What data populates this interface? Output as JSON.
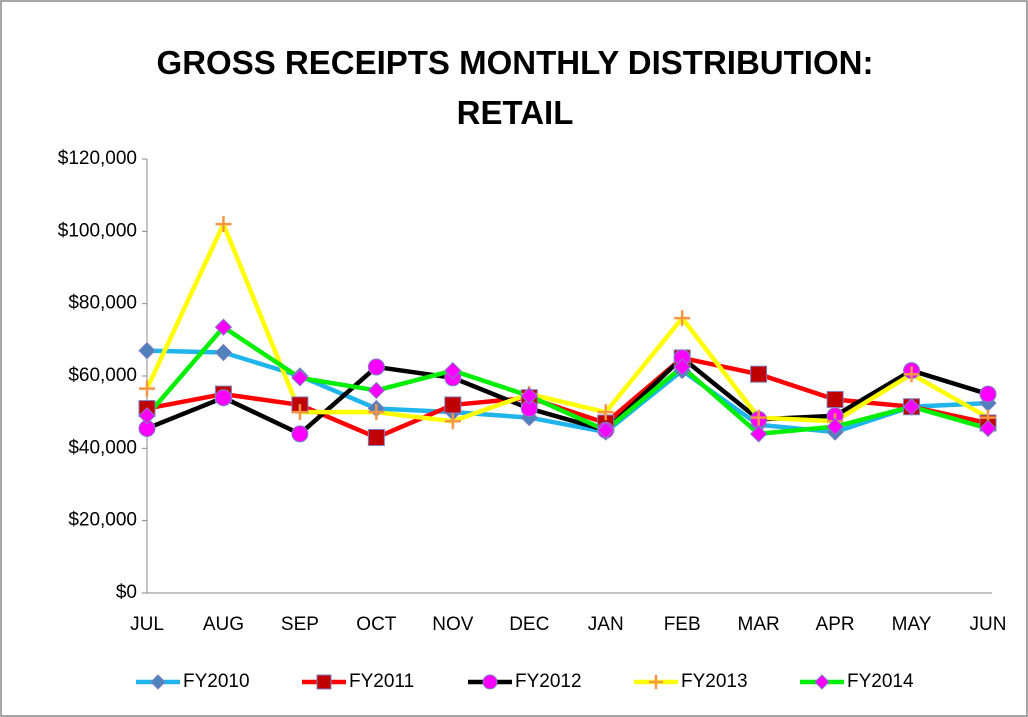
{
  "chart_data": {
    "type": "line",
    "title": "GROSS RECEIPTS MONTHLY DISTRIBUTION: RETAIL",
    "categories": [
      "JUL",
      "AUG",
      "SEP",
      "OCT",
      "NOV",
      "DEC",
      "JAN",
      "FEB",
      "MAR",
      "APR",
      "MAY",
      "JUN"
    ],
    "series": [
      {
        "name": "FY2010",
        "color": "#1fb4ec",
        "marker": "diamond",
        "marker_color": "#4f81bd",
        "values": [
          67000,
          66500,
          60000,
          51000,
          50000,
          48500,
          44500,
          61500,
          46500,
          44500,
          51500,
          52500
        ]
      },
      {
        "name": "FY2011",
        "color": "#ff0000",
        "marker": "square",
        "marker_color": "#c00000",
        "values": [
          51000,
          55000,
          52000,
          43000,
          52000,
          54000,
          47000,
          65000,
          60500,
          53500,
          51500,
          47000
        ]
      },
      {
        "name": "FY2012",
        "color": "#000000",
        "marker": "circle",
        "marker_color": "#ff00ff",
        "values": [
          45500,
          54000,
          44000,
          62500,
          59500,
          51000,
          45000,
          65000,
          48000,
          49000,
          61500,
          55000
        ]
      },
      {
        "name": "FY2013",
        "color": "#ffff00",
        "marker": "plus",
        "marker_color": "#f79646",
        "values": [
          56500,
          102000,
          50000,
          50000,
          47500,
          55000,
          50000,
          76000,
          48500,
          47500,
          60500,
          48500
        ]
      },
      {
        "name": "FY2014",
        "color": "#00ee00",
        "marker": "diamond",
        "marker_color": "#ff00ff",
        "values": [
          49000,
          73500,
          59500,
          56000,
          61500,
          54500,
          45000,
          62500,
          44000,
          46000,
          51500,
          45500
        ]
      }
    ],
    "ylim": [
      0,
      120000
    ],
    "yticks": [
      {
        "value": 0,
        "label": "$0"
      },
      {
        "value": 20000,
        "label": "$20,000"
      },
      {
        "value": 40000,
        "label": "$40,000"
      },
      {
        "value": 60000,
        "label": "$60,000"
      },
      {
        "value": 80000,
        "label": "$80,000"
      },
      {
        "value": 100000,
        "label": "$100,000"
      },
      {
        "value": 120000,
        "label": "$120,000"
      }
    ],
    "grid": false,
    "legend": "bottom"
  }
}
